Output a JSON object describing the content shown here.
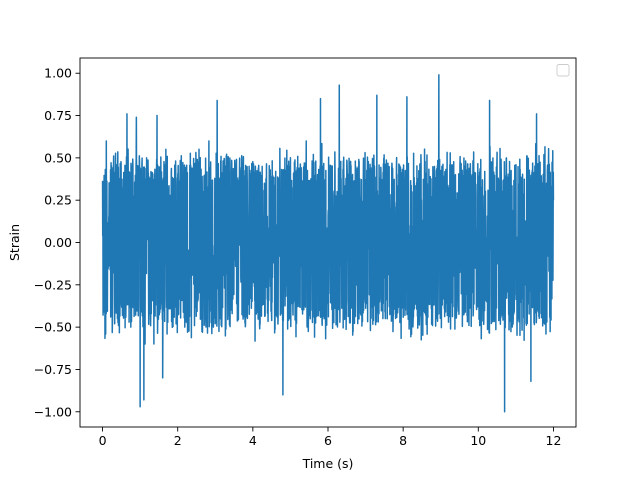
{
  "chart_data": {
    "type": "line",
    "title": "",
    "xlabel": "Time (s)",
    "ylabel": "Strain",
    "xlim": [
      -0.6,
      12.6
    ],
    "ylim": [
      -1.09,
      1.09
    ],
    "xticks": [
      0,
      2,
      4,
      6,
      8,
      10,
      12
    ],
    "xtick_labels": [
      "0",
      "2",
      "4",
      "6",
      "8",
      "10",
      "12"
    ],
    "yticks": [
      -1.0,
      -0.75,
      -0.5,
      -0.25,
      0.0,
      0.25,
      0.5,
      0.75,
      1.0
    ],
    "ytick_labels": [
      "−1.00",
      "−0.75",
      "−0.50",
      "−0.25",
      "0.00",
      "0.25",
      "0.50",
      "0.75",
      "1.00"
    ],
    "grid": false,
    "legend": {
      "placement": "upper-right",
      "entries": []
    },
    "series": [
      {
        "color": "#1f77b4",
        "x_range": [
          0,
          12
        ],
        "y_range": [
          -1.0,
          1.0
        ],
        "description_values": {
          "typical_envelope": [
            -0.5,
            0.5
          ],
          "spikes": [
            {
              "x": 0.1,
              "y": 0.6
            },
            {
              "x": 0.65,
              "y": 0.76
            },
            {
              "x": 0.9,
              "y": 0.74
            },
            {
              "x": 1.0,
              "y": -0.97
            },
            {
              "x": 1.1,
              "y": -0.93
            },
            {
              "x": 1.45,
              "y": 0.75
            },
            {
              "x": 1.6,
              "y": -0.8
            },
            {
              "x": 3.05,
              "y": 0.84
            },
            {
              "x": 4.8,
              "y": -0.9
            },
            {
              "x": 5.8,
              "y": 0.85
            },
            {
              "x": 6.3,
              "y": 0.93
            },
            {
              "x": 7.3,
              "y": 0.87
            },
            {
              "x": 8.1,
              "y": 0.86
            },
            {
              "x": 8.95,
              "y": 0.99
            },
            {
              "x": 10.3,
              "y": 0.84
            },
            {
              "x": 10.7,
              "y": -1.0
            },
            {
              "x": 11.4,
              "y": -0.82
            },
            {
              "x": 11.55,
              "y": 0.76
            }
          ]
        }
      }
    ]
  }
}
